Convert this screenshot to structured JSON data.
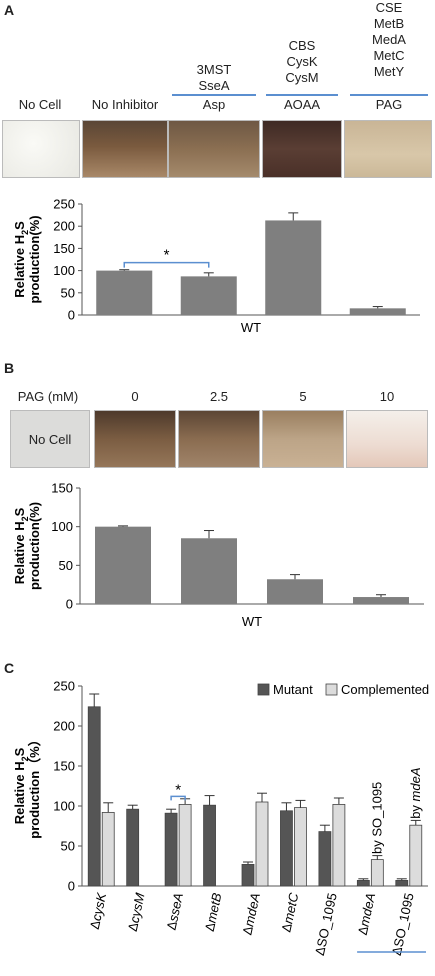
{
  "panelA": {
    "letter": "A",
    "labels": {
      "no_cell": "No Cell",
      "no_inhibitor": "No Inhibitor",
      "asp_enzymes": [
        "3MST",
        "SseA"
      ],
      "asp": "Asp",
      "aoaa_enzymes": [
        "CBS",
        "CysK",
        "CysM"
      ],
      "aoaa": "AOAA",
      "pag_enzymes": [
        "CSE",
        "MetB",
        "MedA",
        "MetC",
        "MetY"
      ],
      "pag": "PAG"
    }
  },
  "panelB": {
    "letter": "B",
    "pag_label": "PAG (mM)",
    "concentrations": [
      "0",
      "2.5",
      "5",
      "10"
    ],
    "no_cell": "No Cell"
  },
  "panelC": {
    "letter": "C"
  },
  "colors": {
    "bar_gray": "#7f7f7f",
    "mutant": "#555555",
    "complemented": "#dcdcdc",
    "accent_blue": "#5b8fd0"
  },
  "chart_data": [
    {
      "type": "bar",
      "panel": "A",
      "categories": [
        "",
        "",
        "",
        ""
      ],
      "values": [
        100,
        87,
        213,
        15
      ],
      "errors": [
        2,
        8,
        17,
        4
      ],
      "xlabel": "WT",
      "ylabel_line1": "Relative H",
      "ylabel_sub": "2",
      "ylabel_after": "S",
      "ylabel_line2": "production(%)",
      "ylim": [
        0,
        250
      ],
      "yticks": [
        "0",
        "50",
        "100",
        "150",
        "200",
        "250"
      ],
      "annotation": "*",
      "grid": false
    },
    {
      "type": "bar",
      "panel": "B",
      "categories": [
        "",
        "",
        "",
        ""
      ],
      "values": [
        100,
        85,
        32,
        9
      ],
      "errors": [
        1,
        10,
        6,
        3
      ],
      "xlabel": "WT",
      "ylabel_line1": "Relative H",
      "ylabel_sub": "2",
      "ylabel_after": "S",
      "ylabel_line2": "production(%)",
      "ylim": [
        0,
        150
      ],
      "yticks": [
        "0",
        "50",
        "100",
        "150"
      ],
      "grid": false
    },
    {
      "type": "bar",
      "panel": "C",
      "categories": [
        "ΔcysK",
        "ΔcysM",
        "ΔsseA",
        "ΔmetB",
        "ΔmdeA",
        "ΔmetC",
        "ΔSO_1095",
        "ΔmdeA",
        "ΔSO_1095"
      ],
      "category_italic": [
        true,
        true,
        true,
        true,
        true,
        true,
        false,
        true,
        false
      ],
      "series": [
        {
          "name": "Mutant",
          "values": [
            224,
            96,
            91,
            101,
            27,
            94,
            68,
            7,
            7
          ],
          "errors": [
            16,
            5,
            5,
            12,
            3,
            10,
            8,
            2,
            2
          ]
        },
        {
          "name": "Complemented",
          "values": [
            92,
            null,
            102,
            null,
            105,
            98,
            102,
            33,
            76
          ],
          "errors": [
            12,
            null,
            7,
            null,
            11,
            9,
            8,
            5,
            6
          ]
        }
      ],
      "bar_annotations": [
        "by SO_1095",
        "by mdeA"
      ],
      "annotation": "*",
      "ylabel_line1": "Relative H",
      "ylabel_sub": "2",
      "ylabel_after": "S",
      "ylabel_line2": "production（%）",
      "ylim": [
        0,
        250
      ],
      "yticks": [
        "0",
        "50",
        "100",
        "150",
        "200",
        "250"
      ],
      "legend_position": "top-right",
      "grid": false
    }
  ]
}
